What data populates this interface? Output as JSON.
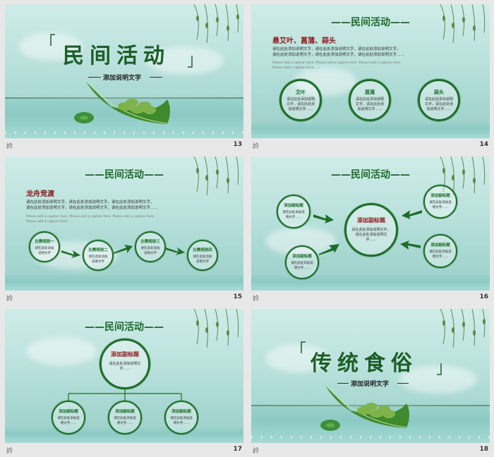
{
  "slides": [
    {
      "number": "13",
      "title": "民间活动",
      "subtitle": "添加说明文字",
      "footer_mark": "訡"
    },
    {
      "number": "14",
      "header": "——民间活动——",
      "heading": "悬艾叶、菖蒲、蒜头",
      "paragraph": [
        "请在此处添加说明文字，请在此处添加说明文字，请在此处添加说明文字，",
        "请在此处添加说明文字，请在此处添加说明文字，请在此处添加说明文字……"
      ],
      "english": [
        "Please add a caption here. Please add a caption here. Please add a caption here.",
        "Please add a caption here……"
      ],
      "circles": [
        {
          "title": "艾叶",
          "text": "请在此处添加说明文字，请在此处添加说明文字……"
        },
        {
          "title": "菖蒲",
          "text": "请在此处添加说明文字，请在此处添加说明文字……"
        },
        {
          "title": "蒜头",
          "text": "请在此处添加说明文字，请在此处添加说明文字……"
        }
      ],
      "footer_mark": "訡"
    },
    {
      "number": "15",
      "header": "——民间活动——",
      "heading": "龙舟竞渡",
      "paragraph": [
        "请在此处添加说明文字，请在此处添加说明文字，请在此处添加说明文字，",
        "请在此处添加说明文字，请在此处添加说明文字，请在此处添加说明文字……"
      ],
      "english": [
        "Please add a caption here. Please add a caption here. Please add a caption here.",
        "Please add a caption here……"
      ],
      "circles": [
        {
          "title": "比赛规则一",
          "text": "请在此处添加说明文字"
        },
        {
          "title": "比赛规则二",
          "text": "请在此处添加说明文字"
        },
        {
          "title": "比赛规则三",
          "text": "请在此处添加说明文字"
        },
        {
          "title": "比赛规则四",
          "text": "请在此处添加说明文字"
        }
      ],
      "footer_mark": "訡"
    },
    {
      "number": "16",
      "header": "——民间活动——",
      "center": {
        "title": "添加副标题",
        "text": "请在此处添加说明文字，请在此处添加说明文字……"
      },
      "circles": [
        {
          "title": "添加副标题",
          "text": "请在此处添加说明文字……"
        },
        {
          "title": "添加副标题",
          "text": "请在此处添加说明文字……"
        },
        {
          "title": "添加副标题",
          "text": "请在此处添加说明文字……"
        },
        {
          "title": "添加副标题",
          "text": "请在此处添加说明文字……"
        }
      ],
      "footer_mark": "訡"
    },
    {
      "number": "17",
      "header": "——民间活动——",
      "center": {
        "title": "添加副标题",
        "text": "请在此处添加说明文字……"
      },
      "circles": [
        {
          "title": "添加副标题",
          "text": "请在此处添加说明文字……"
        },
        {
          "title": "添加副标题",
          "text": "请在此处添加说明文字……"
        },
        {
          "title": "添加副标题",
          "text": "请在此处添加说明文字……"
        }
      ],
      "footer_mark": "訡"
    },
    {
      "number": "18",
      "title": "传统食俗",
      "subtitle": "添加说明文字",
      "footer_mark": "訡"
    }
  ],
  "colors": {
    "accent_green": "#1e6d2a",
    "heading_red": "#8b1a1a",
    "water": "#9ccfc9"
  }
}
